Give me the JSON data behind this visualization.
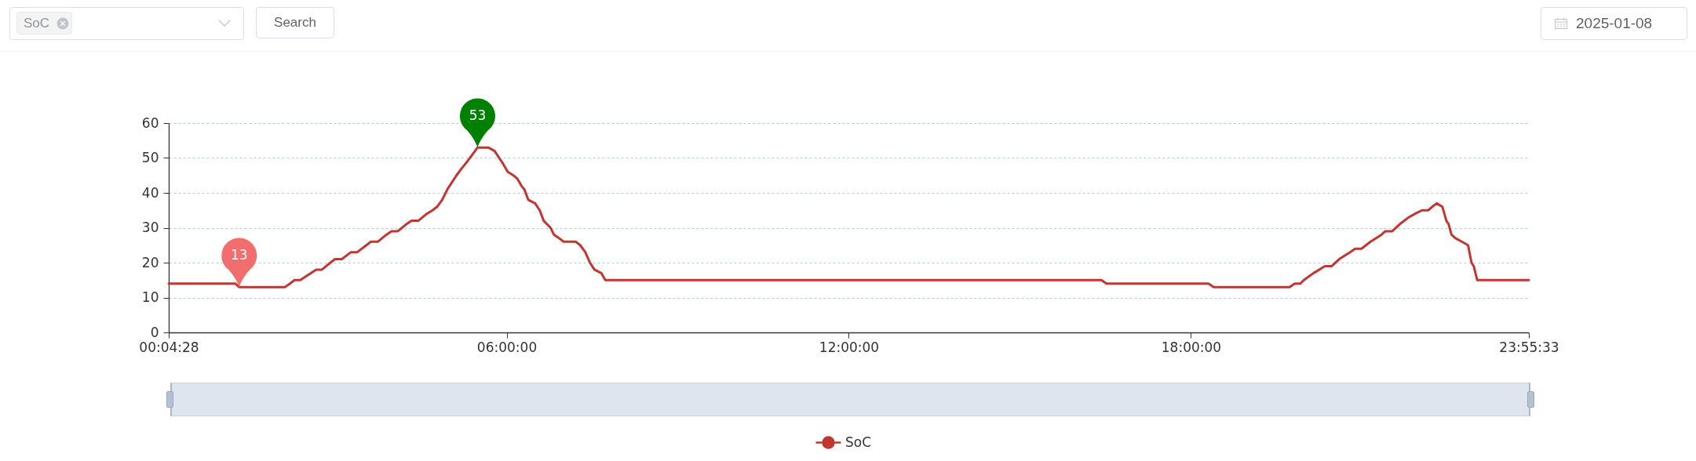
{
  "chart_data": {
    "type": "line",
    "x": [
      0.0744,
      1.24,
      1.31,
      2.11,
      2.2,
      2.28,
      2.38,
      2.57,
      2.66,
      2.76,
      2.91,
      2.99,
      3.11,
      3.27,
      3.38,
      3.54,
      3.62,
      3.74,
      3.89,
      3.98,
      4.09,
      4.24,
      4.33,
      4.45,
      4.6,
      4.7,
      4.78,
      4.87,
      4.96,
      5.04,
      5.12,
      5.21,
      5.31,
      5.4,
      5.49,
      5.68,
      5.79,
      5.87,
      5.95,
      6.02,
      6.12,
      6.19,
      6.26,
      6.31,
      6.38,
      6.5,
      6.58,
      6.65,
      6.77,
      6.83,
      6.92,
      7.0,
      7.21,
      7.29,
      7.38,
      7.46,
      7.54,
      7.66,
      7.73,
      16.43,
      16.52,
      18.31,
      18.4,
      19.73,
      19.82,
      19.92,
      19.98,
      20.15,
      20.35,
      20.47,
      20.6,
      20.79,
      20.88,
      20.99,
      21.15,
      21.34,
      21.41,
      21.53,
      21.66,
      21.82,
      21.93,
      22.05,
      22.16,
      22.23,
      22.31,
      22.41,
      22.48,
      22.52,
      22.57,
      22.64,
      22.75,
      22.86,
      22.92,
      22.96,
      23.02,
      23.9258
    ],
    "series": [
      {
        "name": "SoC",
        "color": "#c23531",
        "values": [
          14,
          14,
          13,
          13,
          14,
          15,
          15,
          17,
          18,
          18,
          20,
          21,
          21,
          23,
          23,
          25,
          26,
          26,
          28,
          29,
          29,
          31,
          32,
          32,
          34,
          35,
          36,
          38,
          41,
          43,
          45,
          47,
          49,
          51,
          53,
          53,
          52,
          50,
          48,
          46,
          45,
          44,
          42,
          41,
          38,
          37,
          35,
          32,
          30,
          28,
          27,
          26,
          26,
          25,
          23,
          20,
          18,
          17,
          15,
          15,
          14,
          14,
          13,
          13,
          14,
          14,
          15,
          17,
          19,
          19,
          21,
          23,
          24,
          24,
          26,
          28,
          29,
          29,
          31,
          33,
          34,
          35,
          35,
          36,
          37,
          36,
          32,
          31,
          28,
          27,
          26,
          25,
          20,
          19,
          15,
          15
        ]
      }
    ],
    "xlim": [
      0.0744,
      23.9258
    ],
    "xticks": [
      {
        "value": 0.0744,
        "label": "00:04:28"
      },
      {
        "value": 6,
        "label": "06:00:00"
      },
      {
        "value": 12,
        "label": "12:00:00"
      },
      {
        "value": 18,
        "label": "18:00:00"
      },
      {
        "value": 23.9258,
        "label": "23:55:33"
      }
    ],
    "ylim": [
      0,
      60
    ],
    "yticks": [
      0,
      10,
      20,
      30,
      40,
      50,
      60
    ],
    "grid": "y",
    "legend": "bottom",
    "annotations": [
      "SoC",
      "Search",
      "2025-01-08",
      {
        "text": "13",
        "x": 1.31,
        "y": 13
      },
      {
        "text": "53",
        "x": 5.49,
        "y": 53
      }
    ]
  }
}
